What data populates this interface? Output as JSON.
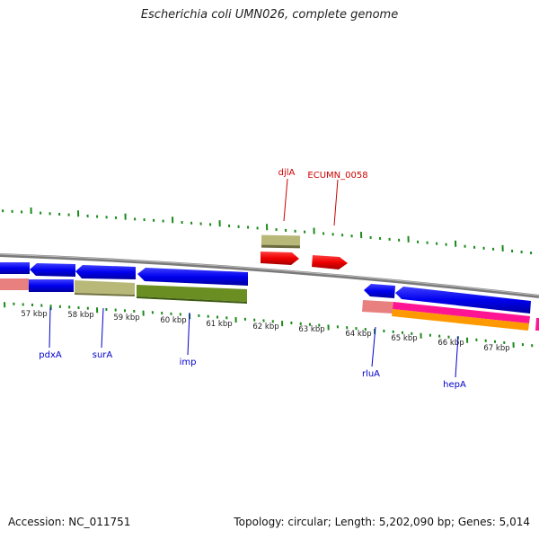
{
  "title": "Escherichia coli UMN026, complete genome",
  "accession": "Accession: NC_011751",
  "topology": "Topology: circular; Length: 5,202,090 bp; Genes: 5,014",
  "kbp_labels": [
    "57 kbp",
    "58 kbp",
    "59 kbp",
    "60 kbp",
    "61 kbp",
    "62 kbp",
    "63 kbp",
    "64 kbp",
    "65 kbp",
    "66 kbp",
    "67 kbp"
  ],
  "gene_labels_below": [
    "pdxA",
    "surA",
    "imp",
    "rluA",
    "hepA"
  ],
  "gene_labels_above": [
    "djlA",
    "ECUMN_0058"
  ],
  "colors": {
    "cds": "#0000ee",
    "rna": "#ee0000",
    "olive": "#b8b878",
    "dark_olive": "#6b8e23",
    "pink": "#e88080",
    "magenta": "#ff1493",
    "orange": "#ff9900",
    "tick": "#1a8a1a",
    "label_blue": "#0000cc",
    "label_red": "#cc0000",
    "backbone": "#888888"
  }
}
